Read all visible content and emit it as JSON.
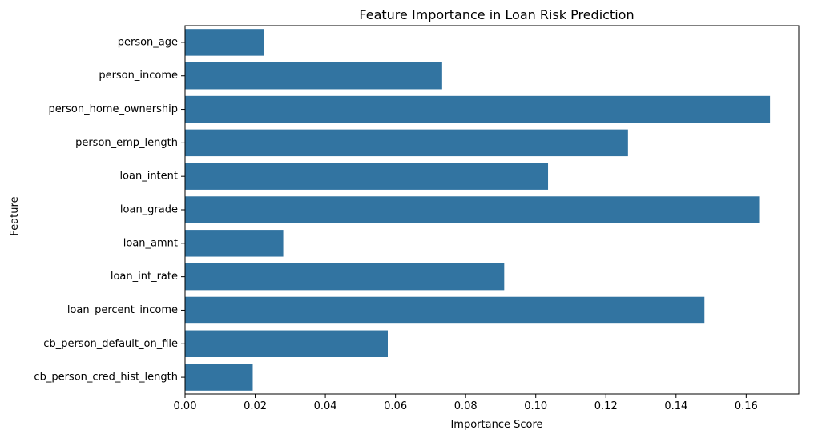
{
  "chart_data": {
    "type": "bar",
    "orientation": "horizontal",
    "title": "Feature Importance in Loan Risk Prediction",
    "xlabel": "Importance Score",
    "ylabel": "Feature",
    "xlim": [
      0,
      0.175
    ],
    "xticks": [
      "0.00",
      "0.02",
      "0.04",
      "0.06",
      "0.08",
      "0.10",
      "0.12",
      "0.14",
      "0.16"
    ],
    "grid": false,
    "categories": [
      "person_age",
      "person_income",
      "person_home_ownership",
      "person_emp_length",
      "loan_intent",
      "loan_grade",
      "loan_amnt",
      "loan_int_rate",
      "loan_percent_income",
      "cb_person_default_on_file",
      "cb_person_cred_hist_length"
    ],
    "values": [
      0.0225,
      0.0733,
      0.1668,
      0.1263,
      0.1035,
      0.1637,
      0.028,
      0.091,
      0.1481,
      0.0578,
      0.0193
    ],
    "bar_color": "#3274a1"
  }
}
